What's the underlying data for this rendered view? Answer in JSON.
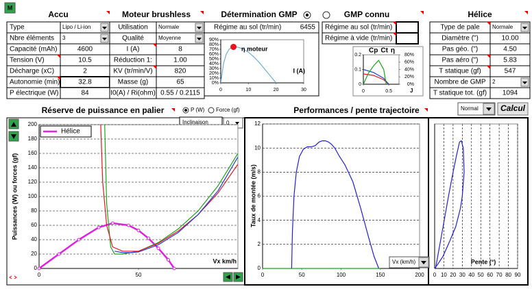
{
  "header": {
    "button": "M"
  },
  "accu": {
    "title": "Accu",
    "rows": [
      [
        "Type",
        "Lipo / Li-ion"
      ],
      [
        "Nbre éléments",
        "3"
      ],
      [
        "Capacité (mAh)",
        "4600"
      ],
      [
        "Tension (V)",
        "10.5"
      ],
      [
        "Décharge (xC)",
        "2"
      ],
      [
        "Autonomie (min)",
        "32.8"
      ],
      [
        "P électrique (W)",
        "84"
      ]
    ]
  },
  "moteur": {
    "title": "Moteur brushless",
    "rows": [
      [
        "Utilisation",
        "Normale"
      ],
      [
        "Qualité",
        "Moyenne"
      ],
      [
        "I (A)",
        "8"
      ],
      [
        "Réduction  1:",
        "1.00"
      ],
      [
        "KV (tr/min/V)",
        "820"
      ],
      [
        "Masse (g)",
        "65"
      ],
      [
        "I0(A) / Ri(ohm)",
        "0.55  /  0.2115"
      ]
    ]
  },
  "gmp_determination": {
    "title": "Détermination GMP",
    "rows": [
      [
        "Régime au sol (tr/min)",
        "6455"
      ]
    ]
  },
  "gmp_connu": {
    "title": "GMP connu",
    "labels": [
      "Régime au sol (tr/min)",
      "Régime à vide (tr/min)"
    ]
  },
  "helice": {
    "title": "Hélice",
    "rows": [
      [
        "Type de pale",
        "Normale"
      ],
      [
        "Diamètre (\")",
        "10.00"
      ],
      [
        "Pas géo. (\")",
        "4.50"
      ],
      [
        "Pas aéro (\")",
        "5.83"
      ],
      [
        "T statique (gf)",
        "547"
      ],
      [
        "Nombre de GMP",
        "2"
      ],
      [
        "T statique tot. (gf)",
        "1094"
      ]
    ]
  },
  "bottom": {
    "reserve_title": "Réserve de puissance en palier",
    "radio_power": "P (W)",
    "radio_force": "Force (gf)",
    "inclinaison_label": "Inclinaison",
    "inclinaison_value": "0",
    "performances_title": "Performances / pente trajectoire",
    "mode": "Normal",
    "calc_button": "Calcul"
  },
  "chart_data": [
    {
      "type": "line",
      "title": "η moteur",
      "x_label": "I (A)",
      "xlim": [
        0,
        30
      ],
      "xticks": [
        0,
        10,
        20,
        30
      ],
      "ylim": [
        0,
        90
      ],
      "yticks": [
        {
          "value": 0,
          "label": "0%"
        },
        {
          "value": 10,
          "label": "10%"
        },
        {
          "value": 20,
          "label": "20%"
        },
        {
          "value": 30,
          "label": "30%"
        },
        {
          "value": 40,
          "label": "40%"
        },
        {
          "value": 50,
          "label": "50%"
        },
        {
          "value": 60,
          "label": "60%"
        },
        {
          "value": 70,
          "label": "70%"
        },
        {
          "value": 80,
          "label": "80%"
        },
        {
          "value": 90,
          "label": "90%"
        }
      ],
      "series": [
        {
          "color": "#6aaedc",
          "x": [
            0,
            1,
            2,
            3,
            4,
            5,
            6,
            8,
            10,
            12,
            14,
            16,
            18,
            20
          ],
          "values": [
            0,
            40,
            60,
            70,
            74,
            75,
            74.5,
            71,
            64,
            54,
            42,
            28,
            14,
            0
          ]
        },
        {
          "color": "#e8141e",
          "markers": true,
          "x": [
            4.6
          ],
          "values": [
            75
          ]
        }
      ]
    },
    {
      "type": "line",
      "x_label": "J",
      "xlim": [
        0,
        0.7
      ],
      "xticks": [
        0,
        0.5
      ],
      "ylim": [
        0,
        0.2
      ],
      "yticks": [
        0,
        0.1,
        0.2
      ],
      "y2lim": [
        0,
        80
      ],
      "y2ticks": [
        {
          "value": 0,
          "label": "0%"
        },
        {
          "value": 20,
          "label": "20%"
        },
        {
          "value": 40,
          "label": "40%"
        },
        {
          "value": 60,
          "label": "60%"
        },
        {
          "value": 80,
          "label": "80%"
        }
      ],
      "series": [
        {
          "name": "Cp",
          "color": "#e8141e",
          "x": [
            0,
            0.2,
            0.4,
            0.5
          ],
          "values": [
            0.07,
            0.06,
            0.03,
            0
          ]
        },
        {
          "name": "Ct",
          "color": "#1f3fd6",
          "x": [
            0,
            0.2,
            0.4,
            0.5
          ],
          "values": [
            0.1,
            0.08,
            0.04,
            0
          ]
        },
        {
          "name": "η",
          "color": "#1aa51a",
          "axis": "y2",
          "x": [
            0,
            0.1,
            0.2,
            0.3,
            0.4,
            0.45
          ],
          "values": [
            0,
            30,
            50,
            65,
            40,
            0
          ]
        }
      ]
    },
    {
      "type": "line",
      "x_label": "Vx km/h",
      "y_label": "Puissances (W) ou forces (gf)",
      "xlim": [
        0,
        100
      ],
      "xticks": [
        0,
        50
      ],
      "ylim": [
        0,
        200
      ],
      "yticks": [
        0,
        20,
        40,
        60,
        80,
        100,
        120,
        140,
        160,
        180,
        200
      ],
      "grid": true,
      "legend": "top-left",
      "series": [
        {
          "name": "Hélice",
          "color": "#e020e0",
          "markers": true,
          "x": [
            0,
            10,
            20,
            30,
            37,
            45,
            50,
            55,
            60,
            65,
            68
          ],
          "values": [
            0,
            20,
            40,
            57,
            63,
            60,
            53,
            42,
            28,
            12,
            0
          ]
        },
        {
          "color": "#1aa51a",
          "x": [
            33,
            34,
            36,
            38,
            42,
            50,
            60,
            70,
            80,
            90,
            100
          ],
          "values": [
            200,
            90,
            30,
            20,
            20,
            24,
            36,
            55,
            80,
            115,
            160
          ]
        },
        {
          "color": "#e8141e",
          "x": [
            31,
            32,
            34,
            37,
            42,
            50,
            60,
            70,
            80,
            90,
            100
          ],
          "values": [
            200,
            120,
            60,
            30,
            24,
            24,
            35,
            52,
            75,
            105,
            145
          ]
        },
        {
          "color": "#1f3fd6",
          "x": [
            38,
            42,
            46,
            50,
            60,
            70,
            80,
            90,
            100
          ],
          "values": [
            24,
            22,
            22,
            23,
            33,
            50,
            75,
            108,
            155
          ]
        }
      ]
    },
    {
      "type": "line",
      "x_label": "Vx (km/h)",
      "y_label": "Taux de montée (m/s)",
      "xlim": [
        0,
        200
      ],
      "xticks": [
        0,
        50,
        100,
        150,
        200
      ],
      "ylim": [
        0,
        12
      ],
      "yticks": [
        0,
        2,
        4,
        6,
        8,
        10,
        12
      ],
      "grid": true,
      "series": [
        {
          "color": "#1aa51a",
          "x": [
            0,
            150
          ],
          "values": [
            0,
            0
          ]
        },
        {
          "color": "#1f1fd6",
          "x": [
            37,
            38,
            40,
            43,
            47,
            52,
            57,
            62,
            67,
            72,
            76,
            80,
            84,
            88,
            92,
            98,
            105,
            115,
            125,
            135,
            142,
            148
          ],
          "values": [
            0,
            3,
            6,
            8,
            9.3,
            9.9,
            10.1,
            10.1,
            10.2,
            10.5,
            10.6,
            10.6,
            10.5,
            10.3,
            10,
            9.3,
            8.6,
            7.2,
            5,
            2.6,
            1,
            0
          ]
        }
      ]
    },
    {
      "type": "line",
      "x_label": "Pente (°)",
      "xlim": [
        0,
        90
      ],
      "xticks": [
        0,
        10,
        20,
        30,
        40,
        50,
        60,
        70,
        80,
        90
      ],
      "ylim": [
        0,
        12
      ],
      "grid": true,
      "series": [
        {
          "color": "#1f1fd6",
          "x": [
            1,
            8,
            15,
            20,
            24,
            27,
            29,
            31,
            32,
            30,
            28,
            23,
            16,
            9,
            3,
            0
          ],
          "values": [
            0,
            3,
            6,
            8,
            9.5,
            10.5,
            10.6,
            10,
            8,
            6,
            5,
            3.5,
            2.2,
            1,
            0.3,
            0
          ]
        }
      ]
    }
  ]
}
